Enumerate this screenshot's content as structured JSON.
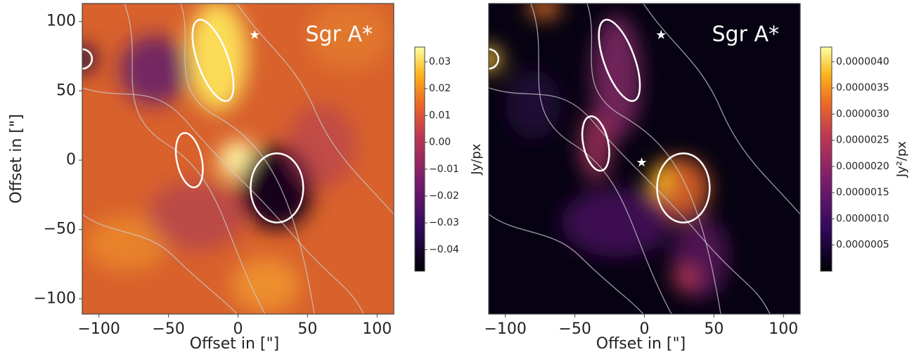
{
  "chart_data": [
    {
      "type": "image",
      "annotation": "Sgr A*",
      "xlabel": "Offset in [\"]",
      "ylabel": "Offset in [\"]",
      "xlim": [
        -112,
        112
      ],
      "ylim": [
        -111,
        113
      ],
      "xticks": [
        {
          "value": -100,
          "label": "−100"
        },
        {
          "value": -50,
          "label": "−50"
        },
        0,
        50,
        100
      ],
      "yticks": [
        {
          "value": -100,
          "label": "−100"
        },
        {
          "value": -50,
          "label": "−50"
        },
        0,
        50,
        100
      ],
      "colorbar": {
        "label": "Jy/px",
        "cmap": "inferno",
        "clim": [
          -0.048,
          0.0355
        ],
        "ticks": [
          0.03,
          0.02,
          0.01,
          {
            "value": 0,
            "label": "0.00"
          },
          {
            "value": -0.01,
            "label": "−0.01"
          },
          {
            "value": -0.02,
            "label": "−0.02"
          },
          {
            "value": -0.03,
            "label": "−0.03"
          },
          {
            "value": -0.04,
            "label": "−0.04"
          }
        ]
      }
    },
    {
      "type": "image",
      "annotation": "Sgr A*",
      "xlabel": "Offset in [\"]",
      "xlim": [
        -112,
        112
      ],
      "ylim": [
        -111,
        113
      ],
      "xticks": [
        {
          "value": -100,
          "label": "−100"
        },
        {
          "value": -50,
          "label": "−50"
        },
        0,
        50,
        100
      ],
      "colorbar": {
        "label": "Jy²/px",
        "cmap": "inferno",
        "clim": [
          0,
          4.28e-06
        ],
        "ticks": [
          {
            "value": 4e-06,
            "label": "0.0000040"
          },
          {
            "value": 3.5e-06,
            "label": "0.0000035"
          },
          {
            "value": 3e-06,
            "label": "0.0000030"
          },
          {
            "value": 2.5e-06,
            "label": "0.0000025"
          },
          {
            "value": 2e-06,
            "label": "0.0000020"
          },
          {
            "value": 1.5e-06,
            "label": "0.0000015"
          },
          {
            "value": 1e-06,
            "label": "0.0000010"
          },
          {
            "value": 5e-07,
            "label": "0.0000005"
          }
        ]
      }
    }
  ]
}
